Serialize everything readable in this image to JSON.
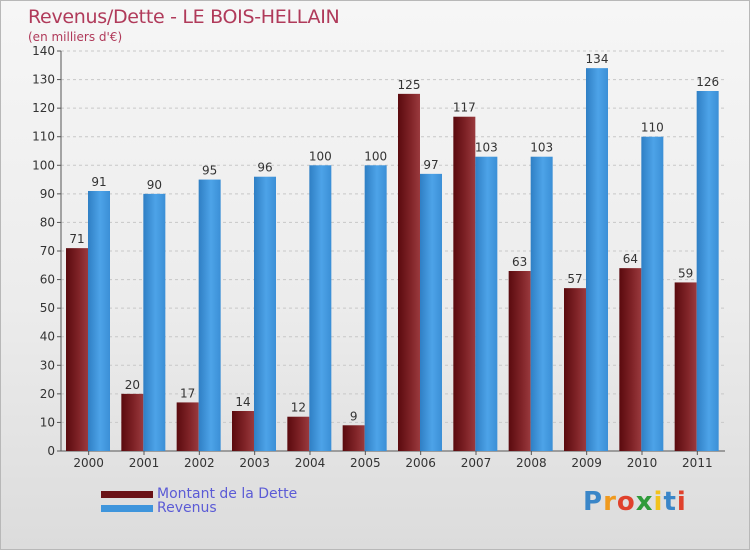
{
  "header": {
    "title": "Revenus/Dette - LE BOIS-HELLAIN",
    "subtitle": "(en milliers d'€)"
  },
  "chart_data": {
    "type": "bar",
    "categories": [
      "2000",
      "2001",
      "2002",
      "2003",
      "2004",
      "2005",
      "2006",
      "2007",
      "2008",
      "2009",
      "2010",
      "2011"
    ],
    "series": [
      {
        "name": "Montant de la Dette",
        "color": "#7a1a1e",
        "values": [
          71,
          20,
          17,
          14,
          12,
          9,
          125,
          117,
          63,
          57,
          64,
          59
        ]
      },
      {
        "name": "Revenus",
        "color": "#3e95dc",
        "values": [
          91,
          90,
          95,
          96,
          100,
          100,
          97,
          103,
          103,
          134,
          110,
          126
        ]
      }
    ],
    "ylim": [
      0,
      140
    ],
    "yticks": [
      0,
      10,
      20,
      30,
      40,
      50,
      60,
      70,
      80,
      90,
      100,
      110,
      120,
      130,
      140
    ],
    "grid": true,
    "legend_position": "bottom-left"
  },
  "legend": {
    "debt_label": "Montant de la Dette",
    "revenue_label": "Revenus"
  },
  "logo": {
    "letters": [
      "P",
      "r",
      "o",
      "x",
      "i",
      "t",
      "i"
    ],
    "colors": [
      "#3a86c8",
      "#f09a1e",
      "#e0412c",
      "#2f9b3a",
      "#f2c21c",
      "#3a86c8",
      "#e0412c"
    ]
  }
}
